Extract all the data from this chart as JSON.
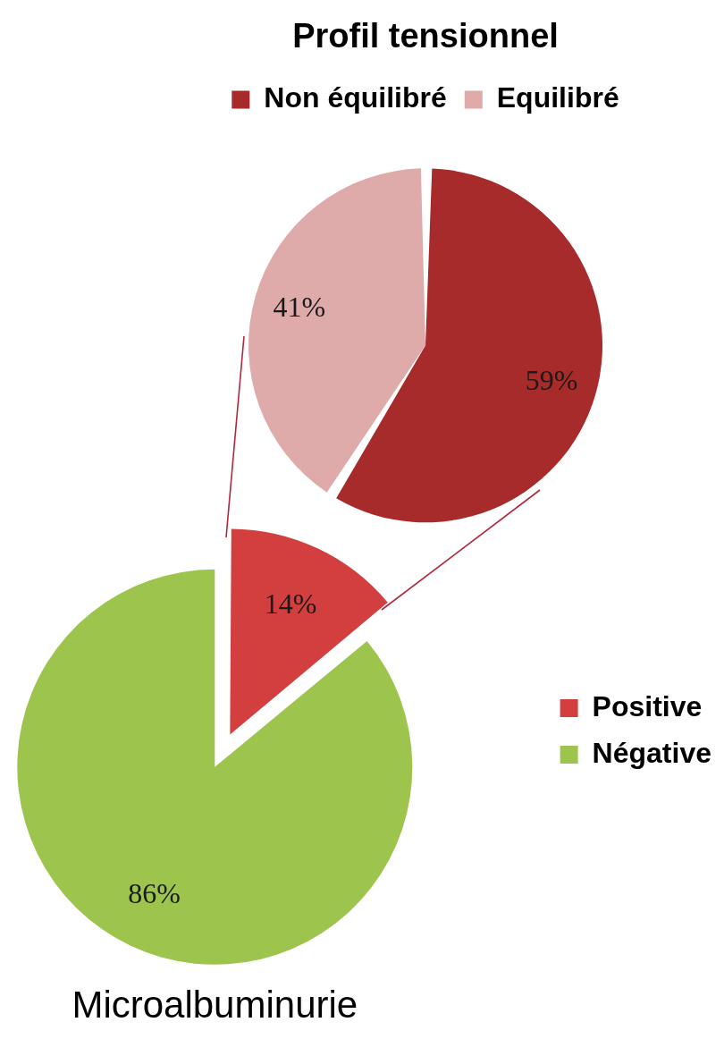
{
  "chart_data": [
    {
      "type": "pie",
      "title": "Profil tensionnel",
      "categories": [
        "Non équilibré",
        "Equilibré"
      ],
      "values": [
        59,
        41
      ],
      "colors": [
        "#a82b2b",
        "#dfaaaa"
      ],
      "value_labels": [
        "59%",
        "41%"
      ],
      "legend": "top"
    },
    {
      "type": "pie",
      "title": "Microalbuminurie",
      "categories": [
        "Positive",
        "Négative"
      ],
      "values": [
        14,
        86
      ],
      "colors": [
        "#d33f3f",
        "#9dc44d"
      ],
      "value_labels": [
        "14%",
        "86%"
      ],
      "legend": "right"
    }
  ]
}
